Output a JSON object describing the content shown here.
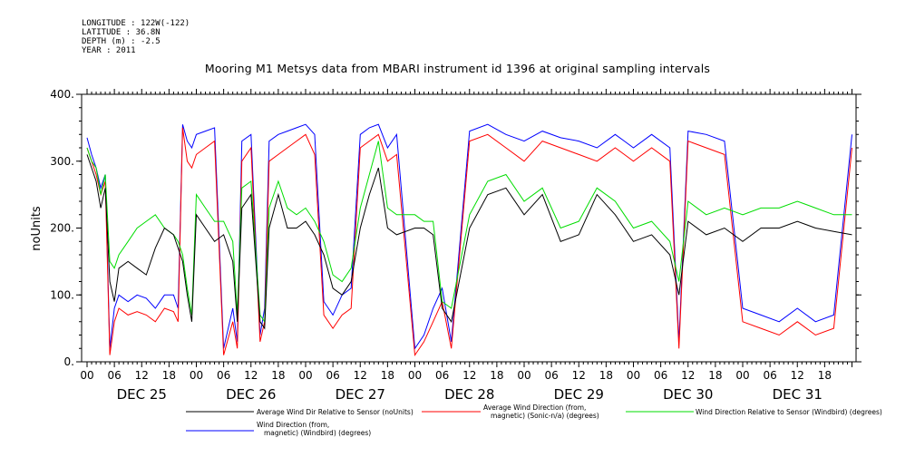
{
  "header": {
    "longitude": "LONGITUDE : 122W(-122)",
    "latitude": "LATITUDE : 36.8N",
    "depth": "DEPTH (m) : -2.5",
    "year": "YEAR : 2011"
  },
  "chart_data": {
    "type": "line",
    "title": "Mooring M1 Metsys data from MBARI instrument id 1396 at original sampling intervals",
    "ylabel": "noUnits",
    "xlabel": "",
    "ylim": [
      0,
      400
    ],
    "yticks": [
      "0.",
      "100.",
      "200.",
      "300.",
      "400."
    ],
    "y_tick_values": [
      0,
      100,
      200,
      300,
      400
    ],
    "hour_labels": [
      "00",
      "06",
      "12",
      "18"
    ],
    "days": [
      "DEC 25",
      "DEC 26",
      "DEC 27",
      "DEC 28",
      "DEC 29",
      "DEC 30",
      "DEC 31"
    ],
    "x_range_hours": [
      0,
      168
    ],
    "grid": false,
    "legend_position": "bottom",
    "series": [
      {
        "name": "Average Wind Dir Relative to Sensor (noUnits)",
        "color": "#000000",
        "x": [
          0,
          1,
          2,
          3,
          4,
          5,
          6,
          7,
          9,
          11,
          13,
          15,
          17,
          19,
          20,
          21,
          22,
          23,
          24,
          26,
          28,
          30,
          32,
          33,
          34,
          36,
          38,
          39,
          40,
          42,
          44,
          46,
          48,
          50,
          52,
          54,
          56,
          58,
          60,
          62,
          64,
          66,
          68,
          72,
          74,
          76,
          78,
          80,
          84,
          88,
          92,
          96,
          100,
          104,
          108,
          112,
          116,
          118,
          120,
          124,
          128,
          130,
          132,
          136,
          140,
          144,
          148,
          152,
          156,
          160,
          164,
          168
        ],
        "values": [
          310,
          290,
          270,
          230,
          260,
          120,
          90,
          140,
          150,
          140,
          130,
          170,
          200,
          190,
          170,
          150,
          100,
          60,
          220,
          200,
          180,
          190,
          150,
          60,
          230,
          250,
          60,
          50,
          200,
          250,
          200,
          200,
          210,
          190,
          160,
          110,
          100,
          120,
          200,
          250,
          290,
          200,
          190,
          200,
          200,
          190,
          80,
          60,
          200,
          250,
          260,
          220,
          250,
          180,
          190,
          250,
          220,
          200,
          180,
          190,
          160,
          100,
          210,
          190,
          200,
          180,
          200,
          200,
          210,
          200,
          195,
          190
        ]
      },
      {
        "name": "Average Wind Direction (from, magnetic) (Sonic-n/a) (degrees)",
        "color": "#ff0000",
        "x": [
          0,
          1,
          2,
          3,
          4,
          5,
          6,
          7,
          9,
          11,
          13,
          15,
          17,
          19,
          20,
          21,
          22,
          23,
          24,
          26,
          28,
          30,
          32,
          33,
          34,
          36,
          38,
          39,
          40,
          42,
          44,
          46,
          48,
          50,
          52,
          54,
          56,
          58,
          60,
          62,
          64,
          66,
          68,
          72,
          74,
          76,
          78,
          80,
          84,
          88,
          92,
          96,
          100,
          104,
          108,
          112,
          116,
          118,
          120,
          124,
          128,
          130,
          132,
          136,
          140,
          144,
          148,
          152,
          156,
          160,
          164,
          168
        ],
        "values": [
          320,
          300,
          280,
          250,
          270,
          10,
          60,
          80,
          70,
          75,
          70,
          60,
          80,
          75,
          60,
          350,
          300,
          290,
          310,
          320,
          330,
          10,
          60,
          20,
          300,
          320,
          30,
          60,
          300,
          310,
          320,
          330,
          340,
          310,
          70,
          50,
          70,
          80,
          320,
          330,
          340,
          300,
          310,
          10,
          30,
          60,
          90,
          20,
          330,
          340,
          320,
          300,
          330,
          320,
          310,
          300,
          320,
          310,
          300,
          320,
          300,
          20,
          330,
          320,
          310,
          60,
          50,
          40,
          60,
          40,
          50,
          320
        ]
      },
      {
        "name": "Wind Direction Relative to Sensor (Windbird) (degrees)",
        "color": "#00dd00",
        "x": [
          0,
          1,
          2,
          3,
          4,
          5,
          6,
          7,
          9,
          11,
          13,
          15,
          17,
          19,
          20,
          21,
          22,
          23,
          24,
          26,
          28,
          30,
          32,
          33,
          34,
          36,
          38,
          39,
          40,
          42,
          44,
          46,
          48,
          50,
          52,
          54,
          56,
          58,
          60,
          62,
          64,
          66,
          68,
          72,
          74,
          76,
          78,
          80,
          84,
          88,
          92,
          96,
          100,
          104,
          108,
          112,
          116,
          118,
          120,
          124,
          128,
          130,
          132,
          136,
          140,
          144,
          148,
          152,
          156,
          160,
          164,
          168
        ],
        "values": [
          320,
          300,
          290,
          250,
          280,
          150,
          140,
          160,
          180,
          200,
          210,
          220,
          200,
          190,
          180,
          160,
          110,
          70,
          250,
          230,
          210,
          210,
          180,
          70,
          260,
          270,
          70,
          60,
          230,
          270,
          230,
          220,
          230,
          210,
          180,
          130,
          120,
          140,
          230,
          280,
          330,
          230,
          220,
          220,
          210,
          210,
          90,
          80,
          220,
          270,
          280,
          240,
          260,
          200,
          210,
          260,
          240,
          220,
          200,
          210,
          180,
          120,
          240,
          220,
          230,
          220,
          230,
          230,
          240,
          230,
          220,
          220
        ]
      },
      {
        "name": "Wind Direction (from, magnetic) (Windbird) (degrees)",
        "color": "#0000ff",
        "x": [
          0,
          1,
          2,
          3,
          4,
          5,
          6,
          7,
          9,
          11,
          13,
          15,
          17,
          19,
          20,
          21,
          22,
          23,
          24,
          26,
          28,
          30,
          32,
          33,
          34,
          36,
          38,
          39,
          40,
          42,
          44,
          46,
          48,
          50,
          52,
          54,
          56,
          58,
          60,
          62,
          64,
          66,
          68,
          72,
          74,
          76,
          78,
          80,
          84,
          88,
          92,
          96,
          100,
          104,
          108,
          112,
          116,
          118,
          120,
          124,
          128,
          130,
          132,
          136,
          140,
          144,
          148,
          152,
          156,
          160,
          164,
          168
        ],
        "values": [
          335,
          310,
          290,
          260,
          280,
          20,
          80,
          100,
          90,
          100,
          95,
          80,
          100,
          100,
          80,
          355,
          330,
          320,
          340,
          345,
          350,
          20,
          80,
          30,
          330,
          340,
          40,
          80,
          330,
          340,
          345,
          350,
          355,
          340,
          90,
          70,
          100,
          110,
          340,
          350,
          355,
          320,
          340,
          20,
          40,
          80,
          110,
          30,
          345,
          355,
          340,
          330,
          345,
          335,
          330,
          320,
          340,
          330,
          320,
          340,
          320,
          30,
          345,
          340,
          330,
          80,
          70,
          60,
          80,
          60,
          70,
          340
        ]
      }
    ]
  }
}
